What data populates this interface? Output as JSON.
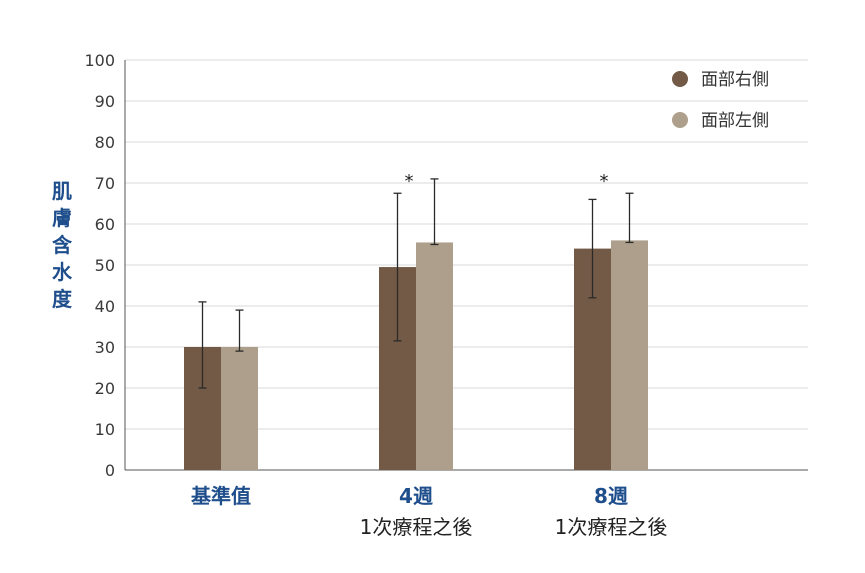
{
  "chart_data": {
    "type": "bar",
    "ylabel": "肌膚含水度",
    "ylim": [
      0,
      100
    ],
    "yticks": [
      0,
      10,
      20,
      30,
      40,
      50,
      60,
      70,
      80,
      90,
      100
    ],
    "grid": true,
    "legend_position": "top-right",
    "categories": [
      {
        "main": "基準值",
        "sub": ""
      },
      {
        "main": "4週",
        "sub": "1次療程之後"
      },
      {
        "main": "8週",
        "sub": "1次療程之後"
      }
    ],
    "series": [
      {
        "name": "面部右側",
        "color": "#735a46",
        "values": [
          30,
          49.5,
          54
        ],
        "error": [
          [
            20,
            41
          ],
          [
            31.5,
            67.5
          ],
          [
            42,
            66
          ]
        ]
      },
      {
        "name": "面部左側",
        "color": "#ad9f8b",
        "values": [
          30,
          55.5,
          56
        ],
        "error": [
          [
            29,
            39
          ],
          [
            55,
            71
          ],
          [
            55.5,
            67.5
          ]
        ]
      }
    ],
    "significance": [
      "",
      "*",
      "*"
    ]
  }
}
